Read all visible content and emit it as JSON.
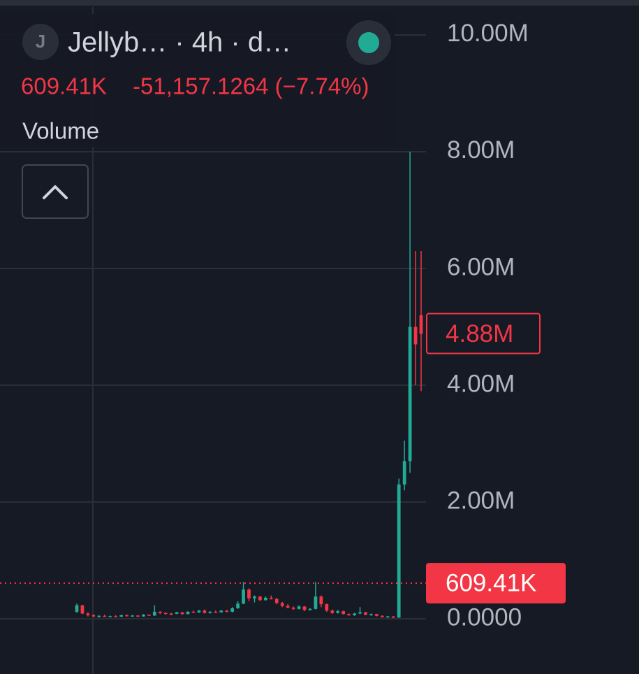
{
  "chart_data": {
    "type": "candlestick",
    "symbol_icon": "J",
    "title": "Jellyb… · 4h · d…",
    "last_value": "609.41K",
    "change": "-51,157.1264 (−7.74%)",
    "indicator": "Volume",
    "ylim": [
      -946000,
      10479000
    ],
    "yticks": [
      {
        "value": 0,
        "label": "0.0000"
      },
      {
        "value": 2000000,
        "label": "2.00M"
      },
      {
        "value": 4000000,
        "label": "4.00M"
      },
      {
        "value": 6000000,
        "label": "6.00M"
      },
      {
        "value": 8000000,
        "label": "8.00M"
      },
      {
        "value": 10000000,
        "label": "10.00M"
      }
    ],
    "grid": true,
    "up_color": "#22ab94",
    "down_color": "#f23645",
    "open": [
      120000,
      230000,
      90000,
      60000,
      40000,
      50000,
      40000,
      45000,
      35000,
      60000,
      50000,
      55000,
      40000,
      70000,
      55000,
      120000,
      100000,
      90000,
      85000,
      110000,
      80000,
      120000,
      110000,
      140000,
      100000,
      120000,
      110000,
      140000,
      120000,
      180000,
      260000,
      500000,
      350000,
      380000,
      320000,
      360000,
      340000,
      270000,
      220000,
      190000,
      170000,
      210000,
      150000,
      170000,
      380000,
      250000,
      140000,
      100000,
      130000,
      80000,
      60000,
      90000,
      110000,
      70000,
      80000,
      50000,
      30000,
      40000,
      20000,
      2300000,
      2700000,
      5000000,
      5200000
    ],
    "high": [
      260000,
      240000,
      110000,
      80000,
      60000,
      70000,
      55000,
      60000,
      70000,
      75000,
      65000,
      60000,
      80000,
      75000,
      230000,
      130000,
      110000,
      100000,
      120000,
      115000,
      130000,
      140000,
      150000,
      160000,
      130000,
      140000,
      150000,
      150000,
      200000,
      300000,
      630000,
      520000,
      400000,
      390000,
      380000,
      400000,
      360000,
      290000,
      250000,
      210000,
      230000,
      220000,
      180000,
      630000,
      400000,
      260000,
      160000,
      150000,
      140000,
      90000,
      100000,
      200000,
      120000,
      90000,
      85000,
      60000,
      50000,
      45000,
      2400000,
      3050000,
      8000000,
      6300000,
      6300000
    ],
    "low": [
      100000,
      80000,
      40000,
      30000,
      20000,
      30000,
      25000,
      30000,
      30000,
      40000,
      35000,
      30000,
      35000,
      50000,
      50000,
      80000,
      70000,
      60000,
      80000,
      70000,
      75000,
      100000,
      100000,
      90000,
      90000,
      100000,
      105000,
      110000,
      110000,
      170000,
      250000,
      300000,
      280000,
      300000,
      310000,
      330000,
      250000,
      200000,
      180000,
      150000,
      160000,
      130000,
      140000,
      160000,
      200000,
      120000,
      80000,
      90000,
      70000,
      50000,
      50000,
      80000,
      60000,
      50000,
      40000,
      20000,
      20000,
      10000,
      15000,
      2200000,
      2500000,
      4000000,
      3900000
    ],
    "close": [
      230000,
      90000,
      60000,
      40000,
      50000,
      40000,
      45000,
      35000,
      60000,
      50000,
      55000,
      40000,
      70000,
      55000,
      120000,
      100000,
      90000,
      85000,
      110000,
      80000,
      120000,
      110000,
      140000,
      100000,
      120000,
      110000,
      140000,
      120000,
      180000,
      260000,
      500000,
      350000,
      380000,
      320000,
      360000,
      340000,
      270000,
      220000,
      190000,
      170000,
      210000,
      150000,
      170000,
      380000,
      250000,
      140000,
      100000,
      130000,
      80000,
      60000,
      90000,
      110000,
      70000,
      80000,
      50000,
      30000,
      40000,
      20000,
      2300000,
      2700000,
      5000000,
      4700000,
      4880000
    ],
    "marker": {
      "value": 4880000,
      "label": "4.88M"
    },
    "price_line": {
      "value": 609410,
      "label": "609.41K"
    }
  }
}
